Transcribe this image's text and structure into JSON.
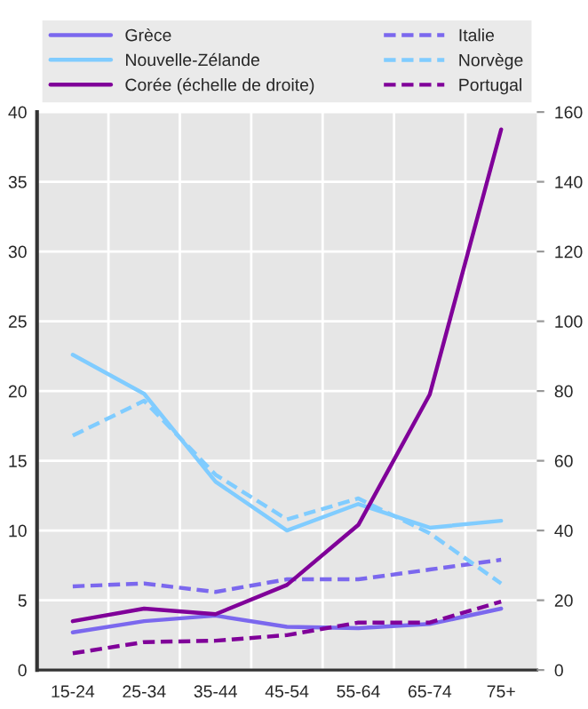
{
  "chart_data": {
    "type": "line",
    "categories": [
      "15-24",
      "25-34",
      "35-44",
      "45-54",
      "55-64",
      "65-74",
      "75+"
    ],
    "series": [
      {
        "name": "Grèce",
        "color": "#7b68ee",
        "line_style": "solid",
        "values": [
          2.7,
          3.5,
          3.9,
          3.1,
          3.0,
          3.3,
          4.4
        ]
      },
      {
        "name": "Nouvelle-Zélande",
        "color": "#80ccff",
        "line_style": "solid",
        "values": [
          22.6,
          19.8,
          13.5,
          10.0,
          11.9,
          10.2,
          10.7
        ]
      },
      {
        "name": "Corée (échelle de droite)",
        "color": "#800099",
        "line_style": "solid",
        "axis": "y2",
        "values": [
          14,
          17.6,
          16,
          24.4,
          41.6,
          79,
          155
        ]
      },
      {
        "name": "Italie",
        "color": "#7b68ee",
        "line_style": "dashed",
        "values": [
          6.0,
          6.2,
          5.6,
          6.5,
          6.5,
          7.2,
          7.9
        ]
      },
      {
        "name": "Norvège",
        "color": "#80ccff",
        "line_style": "dashed",
        "values": [
          16.8,
          19.3,
          14.0,
          10.8,
          12.3,
          9.8,
          6.2
        ]
      },
      {
        "name": "Portugal",
        "color": "#800099",
        "line_style": "dashed",
        "values": [
          1.2,
          2.0,
          2.1,
          2.5,
          3.4,
          3.4,
          4.9
        ]
      }
    ],
    "ylim": [
      0,
      40
    ],
    "yticks": [
      0,
      5,
      10,
      15,
      20,
      25,
      30,
      35,
      40
    ],
    "y2lim": [
      0,
      160
    ],
    "y2ticks": [
      0,
      20,
      40,
      60,
      80,
      100,
      120,
      140,
      160
    ],
    "grid": true,
    "legend": "top",
    "marker": "none"
  }
}
